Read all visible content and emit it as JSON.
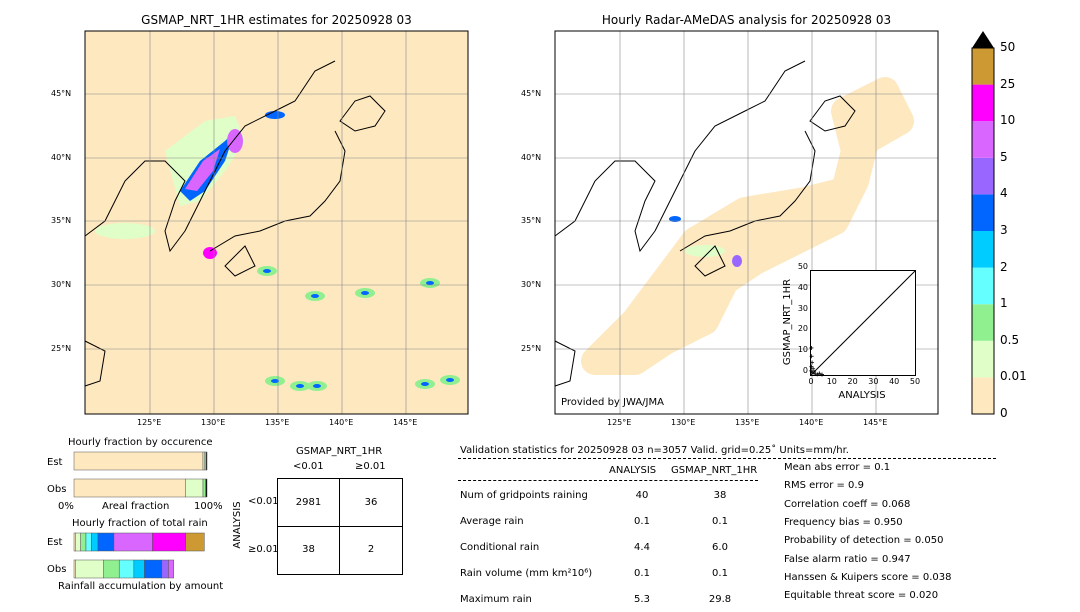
{
  "left_map": {
    "title": "GSMAP_NRT_1HR estimates for 20250928 03"
  },
  "right_map": {
    "title": "Hourly Radar-AMeDAS analysis for 20250928 03",
    "credit": "Provided by JWA/JMA"
  },
  "lat_ticks": [
    "45°N",
    "40°N",
    "35°N",
    "30°N",
    "25°N"
  ],
  "lon_ticks": [
    "125°E",
    "130°E",
    "135°E",
    "140°E",
    "145°E"
  ],
  "colorbar": {
    "labels": [
      "0",
      "0.01",
      "0.5",
      "1",
      "2",
      "3",
      "4",
      "5",
      "10",
      "25",
      "50"
    ],
    "colors": [
      "#fee8c0",
      "#e0ffc8",
      "#90f090",
      "#66ffff",
      "#00ccff",
      "#0066ff",
      "#9966ff",
      "#d966ff",
      "#ff00ff",
      "#cc9933"
    ]
  },
  "chart_data": {
    "type": "scatter",
    "title": "",
    "xlabel": "ANALYSIS",
    "ylabel": "GSMAP_NRT_1HR",
    "xlim": [
      0,
      50
    ],
    "ylim": [
      0,
      50
    ],
    "xticks": [
      "0",
      "10",
      "20",
      "30",
      "40",
      "50"
    ],
    "yticks": [
      "0",
      "10",
      "20",
      "30",
      "40",
      "50"
    ],
    "one_to_one_line": true,
    "points_note": "clustered near origin, y up to ~14, x up to ~6"
  },
  "occurrence": {
    "title": "Hourly fraction by occurence",
    "rows": [
      "Est",
      "Obs"
    ],
    "xlabel": "Areal fraction",
    "x0": "0%",
    "x1": "100%",
    "est": [
      0.97,
      0.013,
      0.01,
      0.007
    ],
    "obs": [
      0.84,
      0.13,
      0.02,
      0.01
    ]
  },
  "total_rain": {
    "title": "Hourly fraction of total rain",
    "rows": [
      "Est",
      "Obs"
    ],
    "xlabel": "Rainfall accumulation by amount",
    "est": [
      0.01,
      0.04,
      0.04,
      0.04,
      0.05,
      0.12,
      0.29,
      0.25,
      0.14
    ],
    "obs": [
      0.01,
      0.21,
      0.12,
      0.11,
      0.08,
      0.13,
      0.05,
      0.04
    ],
    "est_colors": [
      "#fee8c0",
      "#e0ffc8",
      "#90f090",
      "#66ffff",
      "#00ccff",
      "#0066ff",
      "#d966ff",
      "#ff00ff",
      "#cc9933"
    ],
    "obs_colors": [
      "#fee8c0",
      "#e0ffc8",
      "#90f090",
      "#66ffff",
      "#00ccff",
      "#0066ff",
      "#9966ff",
      "#d966ff"
    ]
  },
  "contingency": {
    "title": "GSMAP_NRT_1HR",
    "col_labels": [
      "<0.01",
      "≥0.01"
    ],
    "row_title": "ANALYSIS",
    "row_labels": [
      "<0.01",
      "≥0.01"
    ],
    "cells": [
      [
        "2981",
        "36"
      ],
      [
        "38",
        "2"
      ]
    ]
  },
  "validation": {
    "header": "Validation statistics for 20250928 03  n=3057 Valid. grid=0.25˚ Units=mm/hr.",
    "col_headers": [
      "ANALYSIS",
      "GSMAP_NRT_1HR"
    ],
    "rows": [
      {
        "label": "Num of gridpoints raining",
        "a": "40",
        "g": "38"
      },
      {
        "label": "Average rain",
        "a": "0.1",
        "g": "0.1"
      },
      {
        "label": "Conditional rain",
        "a": "4.4",
        "g": "6.0"
      },
      {
        "label": "Rain volume (mm km²10⁶)",
        "a": "0.1",
        "g": "0.1"
      },
      {
        "label": "Maximum rain",
        "a": "5.3",
        "g": "29.8"
      }
    ],
    "scores": [
      "Mean abs error =    0.1",
      "RMS error =    0.9",
      "Correlation coeff =  0.068",
      "Frequency bias =  0.950",
      "Probability of detection =  0.050",
      "False alarm ratio =  0.947",
      "Hanssen & Kuipers score =  0.038",
      "Equitable threat score =  0.020"
    ]
  }
}
